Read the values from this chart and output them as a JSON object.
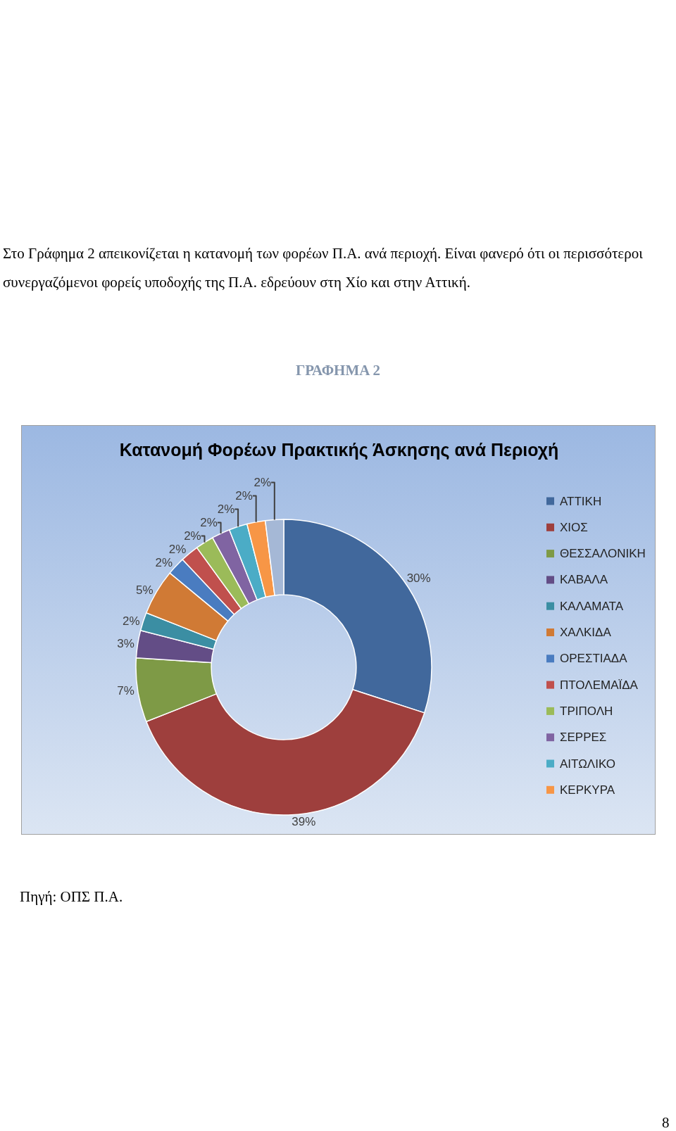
{
  "chart_data": {
    "type": "donut",
    "title": "Κατανομή Φορέων Πρακτικής Άσκησης ανά Περιοχή",
    "categories": [
      "ΑΤΤΙΚΗ",
      "ΧΙΟΣ",
      "ΘΕΣΣΑΛΟΝΙΚΗ",
      "ΚΑΒΑΛΑ",
      "ΚΑΛΑΜΑΤΑ",
      "ΧΑΛΚΙΔΑ",
      "ΟΡΕΣΤΙΑΔΑ",
      "ΠΤΟΛΕΜΑΪΔΑ",
      "ΤΡΙΠΟΛΗ",
      "ΣΕΡΡΕΣ",
      "ΑΙΤΩΛΙΚΟ",
      "ΚΕΡΚΥΡΑ",
      null
    ],
    "values": [
      30,
      39,
      7,
      3,
      2,
      5,
      2,
      2,
      2,
      2,
      2,
      2,
      2
    ],
    "value_labels": [
      "30%",
      "39%",
      "7%",
      "3%",
      "2%",
      "5%",
      "2%",
      "2%",
      "2%",
      "2%",
      "2%",
      "2%",
      "2%"
    ],
    "colors": [
      "#41689c",
      "#9e3f3d",
      "#7e9a46",
      "#634d86",
      "#3b8ea3",
      "#d07a35",
      "#4a7cc0",
      "#c0504d",
      "#9bbb59",
      "#8064a2",
      "#4bacc6",
      "#f79646",
      "#a5b8d6"
    ],
    "legend": "right",
    "annotations": [
      "Στο Γράφημα 2 απεικονίζεται η κατανομή των φορέων Π.Α. ανά περιοχή. Είναι φανερό ότι οι περισσότεροι συνεργαζόμενοι φορείς υποδοχής της Π.Α. εδρεύουν στη Χίο και στην Αττική.",
      "ΓΡΑΦΗΜΑ 2",
      "Πηγή: ΟΠΣ Π.Α.",
      "8"
    ]
  }
}
